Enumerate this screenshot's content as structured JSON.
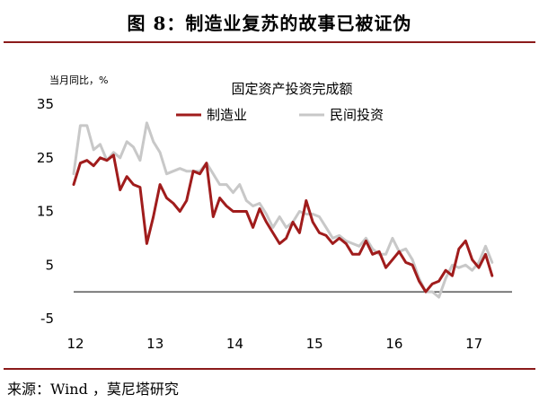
{
  "figure": {
    "title": "图 8：制造业复苏的故事已被证伪",
    "source": "来源：Wind ，莫尼塔研究"
  },
  "chart_data": {
    "type": "line",
    "title": "固定资产投资完成额",
    "ylabel": "当月同比，%",
    "ylim": [
      -5,
      35
    ],
    "yticks": [
      -5,
      5,
      15,
      25,
      35
    ],
    "xlim": [
      12,
      17.5
    ],
    "xticks": [
      12,
      13,
      14,
      15,
      16,
      17
    ],
    "grid": false,
    "legend_position": "top-center",
    "series": [
      {
        "name": "制造业",
        "color": "#a01c1c",
        "x": [
          12.0,
          12.083,
          12.167,
          12.25,
          12.333,
          12.417,
          12.5,
          12.583,
          12.667,
          12.75,
          12.833,
          12.917,
          13.0,
          13.083,
          13.167,
          13.25,
          13.333,
          13.417,
          13.5,
          13.583,
          13.667,
          13.75,
          13.833,
          13.917,
          14.0,
          14.083,
          14.167,
          14.25,
          14.333,
          14.417,
          14.5,
          14.583,
          14.667,
          14.75,
          14.833,
          14.917,
          15.0,
          15.083,
          15.167,
          15.25,
          15.333,
          15.417,
          15.5,
          15.583,
          15.667,
          15.75,
          15.833,
          15.917,
          16.0,
          16.083,
          16.167,
          16.25,
          16.333,
          16.417,
          16.5,
          16.583,
          16.667,
          16.75,
          16.833,
          16.917,
          17.0,
          17.083,
          17.167,
          17.25
        ],
        "values": [
          20,
          24,
          24.5,
          23.5,
          25,
          24.5,
          25.5,
          19,
          21.5,
          20,
          19.5,
          9,
          14,
          20,
          17.5,
          16.5,
          15,
          17,
          22.5,
          22,
          24,
          14,
          17.5,
          16,
          15,
          15,
          15,
          12,
          15.5,
          13,
          11,
          9,
          10,
          13,
          11,
          17,
          13,
          11,
          10.5,
          9,
          10,
          9,
          7,
          7,
          9.5,
          7,
          7.5,
          4.5,
          6,
          7.5,
          5.5,
          5,
          2,
          0,
          1.5,
          2,
          4,
          3,
          8,
          9.5,
          6,
          4.5,
          7,
          3
        ]
      },
      {
        "name": "民间投资",
        "color": "#c8c8c8",
        "x": [
          12.0,
          12.083,
          12.167,
          12.25,
          12.333,
          12.417,
          12.5,
          12.583,
          12.667,
          12.75,
          12.833,
          12.917,
          13.0,
          13.083,
          13.167,
          13.25,
          13.333,
          13.417,
          13.5,
          13.583,
          13.667,
          13.75,
          13.833,
          13.917,
          14.0,
          14.083,
          14.167,
          14.25,
          14.333,
          14.417,
          14.5,
          14.583,
          14.667,
          14.75,
          14.833,
          14.917,
          15.0,
          15.083,
          15.167,
          15.25,
          15.333,
          15.417,
          15.5,
          15.583,
          15.667,
          15.75,
          15.833,
          15.917,
          16.0,
          16.083,
          16.167,
          16.25,
          16.333,
          16.417,
          16.5,
          16.583,
          16.667,
          16.75,
          16.833,
          16.917,
          17.0,
          17.083,
          17.167,
          17.25
        ],
        "values": [
          22,
          31,
          31,
          26.5,
          27.5,
          24.5,
          26,
          25,
          28,
          27,
          24.5,
          31.5,
          28,
          26,
          22,
          22.5,
          23,
          22.5,
          22.5,
          22.5,
          24,
          22,
          20,
          20,
          18.5,
          20,
          17,
          16,
          16.5,
          14.5,
          12,
          14,
          12,
          13,
          15,
          14.5,
          14.5,
          14,
          12,
          10,
          10.5,
          9.5,
          9,
          8.5,
          10,
          8,
          7,
          7,
          10,
          7.5,
          8,
          6,
          2.5,
          0,
          0,
          -1,
          2.5,
          5,
          4.5,
          5,
          4,
          5.5,
          8.5,
          5.5
        ]
      }
    ]
  }
}
